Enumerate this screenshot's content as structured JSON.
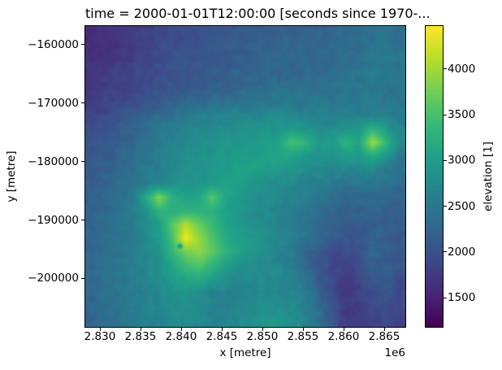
{
  "chart_data": {
    "type": "heatmap",
    "title": "time = 2000-01-01T12:00:00 [seconds since 1970-...",
    "xlabel": "x [metre]",
    "ylabel": "y [metre]",
    "x_offset_text": "1e6",
    "colorbar_label": "elevation [1]",
    "legend_position": "right-colorbar",
    "grid_lines": false,
    "colormap": {
      "name": "viridis",
      "stops": [
        "#440154",
        "#482878",
        "#3e4a89",
        "#31688e",
        "#26828e",
        "#1f9e89",
        "#35b779",
        "#6ece58",
        "#b5de2b",
        "#fde725"
      ]
    },
    "xlim": [
      2828200,
      2867600
    ],
    "ylim": [
      -208300,
      -156800
    ],
    "xticks": {
      "values": [
        2830000,
        2835000,
        2840000,
        2845000,
        2850000,
        2855000,
        2860000,
        2865000
      ],
      "labels": [
        "2.830",
        "2.835",
        "2.840",
        "2.845",
        "2.850",
        "2.855",
        "2.860",
        "2.865"
      ]
    },
    "yticks": {
      "values": [
        -160000,
        -170000,
        -180000,
        -190000,
        -200000
      ],
      "labels": [
        "−160000",
        "−170000",
        "−180000",
        "−190000",
        "−200000"
      ]
    },
    "colorbar": {
      "vmin": 1180,
      "vmax": 4470,
      "ticks": [
        1500,
        2000,
        2500,
        3000,
        3500,
        4000
      ],
      "tick_labels": [
        "1500",
        "2000",
        "2500",
        "3000",
        "3500",
        "4000"
      ]
    },
    "features": {
      "crater_spot": {
        "x": 2839800,
        "y": -194400,
        "radius_px": 3,
        "value": 3000
      }
    },
    "grid": {
      "cols": 24,
      "rows": 22,
      "units": "metre elevation, row 0 = top of map",
      "values": [
        [
          1600,
          1630,
          1680,
          1740,
          1800,
          1880,
          1950,
          1980,
          2010,
          2050,
          2090,
          2110,
          2140,
          2180,
          2220,
          2190,
          2230,
          2270,
          2280,
          2330,
          2310,
          2400,
          2450,
          2400
        ],
        [
          1620,
          1650,
          1700,
          1760,
          1830,
          1910,
          1970,
          2000,
          2030,
          2070,
          2110,
          2130,
          2160,
          2200,
          2240,
          2210,
          2250,
          2290,
          2300,
          2350,
          2330,
          2420,
          2470,
          2420
        ],
        [
          1650,
          1690,
          1740,
          1800,
          1870,
          1940,
          2000,
          2030,
          2060,
          2100,
          2140,
          2170,
          2200,
          2230,
          2260,
          2240,
          2260,
          2300,
          2320,
          2370,
          2350,
          2480,
          2520,
          2470
        ],
        [
          1690,
          1730,
          1780,
          1840,
          1910,
          1980,
          2030,
          2060,
          2090,
          2130,
          2180,
          2210,
          2240,
          2270,
          2300,
          2280,
          2300,
          2340,
          2380,
          2430,
          2480,
          2580,
          2530,
          2480
        ],
        [
          1730,
          1780,
          1830,
          1890,
          1960,
          2020,
          2050,
          2080,
          2100,
          2150,
          2200,
          2250,
          2300,
          2350,
          2400,
          2380,
          2400,
          2430,
          2450,
          2480,
          2450,
          2520,
          2480,
          2450
        ],
        [
          1780,
          1830,
          1890,
          1960,
          2040,
          2120,
          2180,
          2250,
          2300,
          2350,
          2400,
          2430,
          2450,
          2480,
          2500,
          2460,
          2480,
          2500,
          2480,
          2520,
          2490,
          2550,
          2520,
          2470
        ],
        [
          1850,
          1920,
          2010,
          2120,
          2230,
          2330,
          2430,
          2520,
          2580,
          2630,
          2670,
          2700,
          2700,
          2720,
          2750,
          2700,
          2650,
          2650,
          2600,
          2600,
          2580,
          2620,
          2580,
          2520
        ],
        [
          1950,
          2030,
          2130,
          2230,
          2360,
          2470,
          2570,
          2660,
          2710,
          2760,
          2790,
          2810,
          2840,
          2860,
          2900,
          3000,
          2850,
          2800,
          2820,
          2900,
          2950,
          3300,
          3000,
          2680
        ],
        [
          2030,
          2100,
          2200,
          2300,
          2450,
          2550,
          2650,
          2750,
          2800,
          2850,
          2900,
          2900,
          2950,
          3000,
          3100,
          3500,
          3300,
          2950,
          3000,
          3300,
          3050,
          4000,
          3350,
          2750
        ],
        [
          2080,
          2130,
          2230,
          2330,
          2480,
          2580,
          2680,
          2780,
          2830,
          2880,
          2930,
          2950,
          2980,
          3050,
          3100,
          3050,
          2900,
          2850,
          2870,
          2950,
          2950,
          3150,
          2950,
          2550
        ],
        [
          2130,
          2180,
          2280,
          2380,
          2530,
          2630,
          2730,
          2830,
          2880,
          2930,
          2980,
          3050,
          3050,
          3000,
          2950,
          2900,
          2800,
          2750,
          2700,
          2700,
          2650,
          2750,
          2550,
          2400
        ],
        [
          2180,
          2230,
          2330,
          2430,
          2580,
          2700,
          2820,
          2880,
          2930,
          2980,
          3050,
          3000,
          2900,
          2850,
          2750,
          2700,
          2650,
          2600,
          2500,
          2450,
          2450,
          2500,
          2400,
          2300
        ],
        [
          2230,
          2280,
          2380,
          2520,
          3150,
          3850,
          3250,
          3050,
          3100,
          3600,
          3100,
          2950,
          2850,
          2800,
          2700,
          2650,
          2600,
          2500,
          2400,
          2280,
          2300,
          2320,
          2280,
          2200
        ],
        [
          2250,
          2300,
          2400,
          2580,
          2850,
          3300,
          3250,
          3300,
          3300,
          3250,
          3050,
          2900,
          2800,
          2750,
          2650,
          2600,
          2500,
          2350,
          2250,
          2200,
          2220,
          2250,
          2200,
          2150
        ],
        [
          2270,
          2330,
          2430,
          2580,
          2780,
          2980,
          3600,
          4100,
          3700,
          3400,
          3100,
          2950,
          2850,
          2750,
          2650,
          2550,
          2500,
          2300,
          2200,
          2120,
          2150,
          2180,
          2150,
          2100
        ],
        [
          2290,
          2360,
          2460,
          2590,
          2740,
          2940,
          3500,
          4400,
          3950,
          3550,
          3200,
          3000,
          2900,
          2800,
          2700,
          2600,
          2450,
          2250,
          2120,
          2050,
          2100,
          2200,
          2150,
          2080
        ],
        [
          2300,
          2380,
          2480,
          2600,
          2700,
          2880,
          3350,
          3750,
          3900,
          3650,
          3300,
          3050,
          2950,
          2800,
          2650,
          2550,
          2250,
          2050,
          1950,
          1950,
          2000,
          2250,
          2150,
          2100
        ],
        [
          2300,
          2390,
          2490,
          2600,
          2700,
          2830,
          3100,
          3400,
          3550,
          3300,
          3000,
          2850,
          2800,
          2750,
          2700,
          2600,
          2350,
          2100,
          1900,
          1850,
          1950,
          2200,
          2150,
          2050
        ],
        [
          2300,
          2390,
          2490,
          2590,
          2680,
          2780,
          2950,
          3100,
          3150,
          3000,
          2800,
          2750,
          2750,
          2750,
          2750,
          2650,
          2450,
          2150,
          1900,
          1750,
          1900,
          2050,
          2100,
          1950
        ],
        [
          2290,
          2380,
          2480,
          2570,
          2650,
          2740,
          2850,
          2900,
          2800,
          2650,
          2600,
          2650,
          2700,
          2750,
          2750,
          2700,
          2550,
          2250,
          1950,
          1700,
          1850,
          1950,
          2050,
          1900
        ],
        [
          2280,
          2370,
          2470,
          2550,
          2620,
          2700,
          2800,
          2850,
          2750,
          2650,
          2600,
          2700,
          2750,
          2850,
          2800,
          2750,
          2600,
          2350,
          2050,
          1700,
          1800,
          1900,
          1950,
          1900
        ],
        [
          2250,
          2350,
          2450,
          2530,
          2600,
          2680,
          2780,
          2800,
          2750,
          2650,
          2650,
          2750,
          2800,
          2900,
          2900,
          2800,
          2650,
          2400,
          2100,
          1750,
          1800,
          1850,
          1900,
          1850
        ]
      ]
    }
  }
}
